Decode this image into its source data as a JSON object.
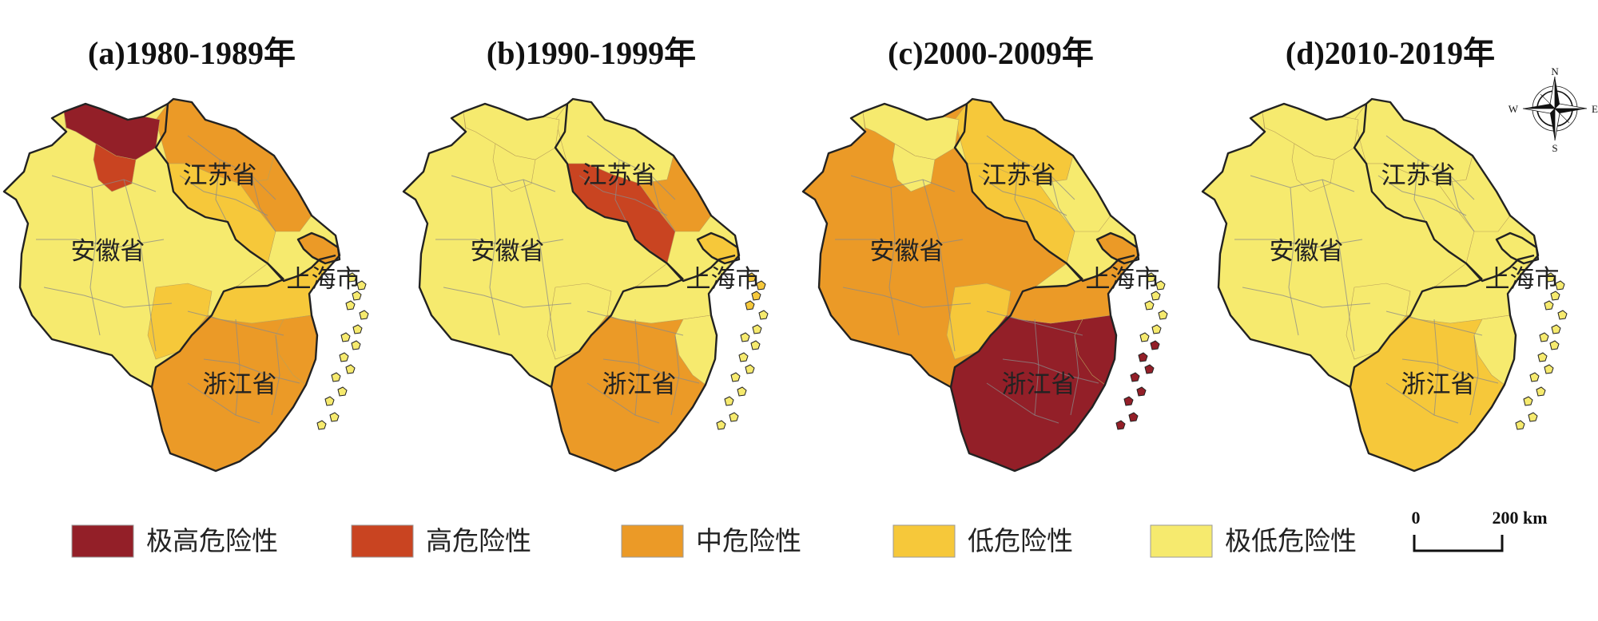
{
  "colors": {
    "extreme_high": "#931f28",
    "high": "#c94421",
    "medium": "#eb9a27",
    "low": "#f6c83a",
    "extreme_low": "#f6ea6e"
  },
  "panels": [
    {
      "title": "(a)1980-1989年"
    },
    {
      "title": "(b)1990-1999年"
    },
    {
      "title": "(c)2000-2009年"
    },
    {
      "title": "(d)2010-2019年"
    }
  ],
  "provinces": {
    "jiangsu": "江苏省",
    "anhui": "安徽省",
    "shanghai": "上海市",
    "zhejiang": "浙江省"
  },
  "legend": [
    {
      "key": "extreme_high",
      "label": "极高危险性"
    },
    {
      "key": "high",
      "label": "高危险性"
    },
    {
      "key": "medium",
      "label": "中危险性"
    },
    {
      "key": "low",
      "label": "低危险性"
    },
    {
      "key": "extreme_low",
      "label": "极低危险性"
    }
  ],
  "scale_bar": {
    "start": "0",
    "end": "200 km"
  },
  "compass": {
    "n": "N",
    "s": "S",
    "e": "E",
    "w": "W"
  }
}
